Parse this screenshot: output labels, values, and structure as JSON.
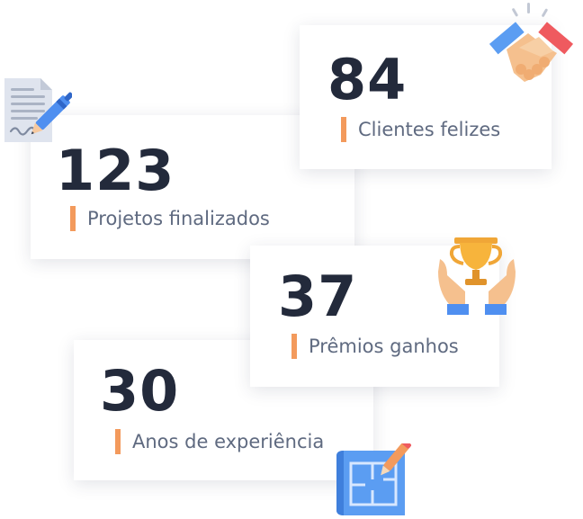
{
  "stats": [
    {
      "number": "123",
      "label": "Projetos finalizados",
      "icon": "contract-icon"
    },
    {
      "number": "84",
      "label": "Clientes felizes",
      "icon": "handshake-icon"
    },
    {
      "number": "37",
      "label": "Prêmios ganhos",
      "icon": "trophy-icon"
    },
    {
      "number": "30",
      "label": "Anos de experiência",
      "icon": "blueprint-icon"
    }
  ],
  "colors": {
    "number": "#232a3b",
    "label": "#5f6a80",
    "accent_bar": "#f39a5c",
    "card_bg": "#ffffff"
  }
}
